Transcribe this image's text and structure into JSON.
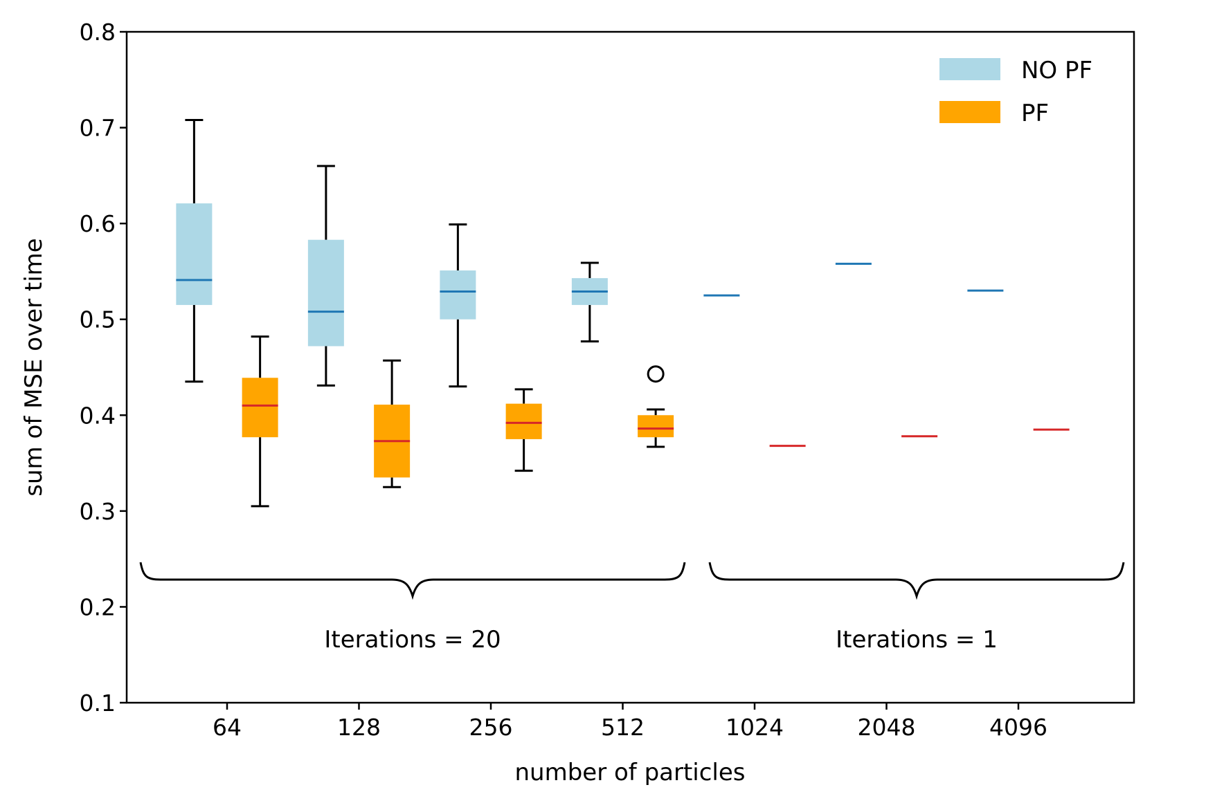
{
  "chart_data": {
    "type": "box",
    "xlabel": "number of particles",
    "ylabel": "sum of MSE over time",
    "ylim": [
      0.1,
      0.8
    ],
    "yticks": [
      "0.1",
      "0.2",
      "0.3",
      "0.4",
      "0.5",
      "0.6",
      "0.7",
      "0.8"
    ],
    "categories": [
      "64",
      "128",
      "256",
      "512",
      "1024",
      "2048",
      "4096"
    ],
    "legend": {
      "position": "top-right",
      "entries": [
        {
          "label": "NO PF",
          "color": "#add8e6"
        },
        {
          "label": "PF",
          "color": "#ffa500"
        }
      ]
    },
    "series": [
      {
        "name": "NO PF",
        "box_color": "#add8e6",
        "median_color": "#1f77b4",
        "boxes": [
          {
            "category": "64",
            "whisker_low": 0.435,
            "q1": 0.515,
            "median": 0.541,
            "q3": 0.621,
            "whisker_high": 0.708,
            "outliers": []
          },
          {
            "category": "128",
            "whisker_low": 0.431,
            "q1": 0.472,
            "median": 0.508,
            "q3": 0.583,
            "whisker_high": 0.66,
            "outliers": []
          },
          {
            "category": "256",
            "whisker_low": 0.43,
            "q1": 0.5,
            "median": 0.529,
            "q3": 0.551,
            "whisker_high": 0.599,
            "outliers": []
          },
          {
            "category": "512",
            "whisker_low": 0.477,
            "q1": 0.515,
            "median": 0.529,
            "q3": 0.543,
            "whisker_high": 0.559,
            "outliers": []
          },
          {
            "category": "1024",
            "whisker_low": 0.525,
            "q1": 0.525,
            "median": 0.525,
            "q3": 0.525,
            "whisker_high": 0.525,
            "outliers": []
          },
          {
            "category": "2048",
            "whisker_low": 0.558,
            "q1": 0.558,
            "median": 0.558,
            "q3": 0.558,
            "whisker_high": 0.558,
            "outliers": []
          },
          {
            "category": "4096",
            "whisker_low": 0.53,
            "q1": 0.53,
            "median": 0.53,
            "q3": 0.53,
            "whisker_high": 0.53,
            "outliers": []
          }
        ]
      },
      {
        "name": "PF",
        "box_color": "#ffa500",
        "median_color": "#d62728",
        "boxes": [
          {
            "category": "64",
            "whisker_low": 0.305,
            "q1": 0.377,
            "median": 0.41,
            "q3": 0.439,
            "whisker_high": 0.482,
            "outliers": []
          },
          {
            "category": "128",
            "whisker_low": 0.325,
            "q1": 0.335,
            "median": 0.373,
            "q3": 0.411,
            "whisker_high": 0.457,
            "outliers": []
          },
          {
            "category": "256",
            "whisker_low": 0.342,
            "q1": 0.375,
            "median": 0.392,
            "q3": 0.412,
            "whisker_high": 0.427,
            "outliers": []
          },
          {
            "category": "512",
            "whisker_low": 0.367,
            "q1": 0.377,
            "median": 0.386,
            "q3": 0.4,
            "whisker_high": 0.406,
            "outliers": [
              0.443
            ]
          },
          {
            "category": "1024",
            "whisker_low": 0.368,
            "q1": 0.368,
            "median": 0.368,
            "q3": 0.368,
            "whisker_high": 0.368,
            "outliers": []
          },
          {
            "category": "2048",
            "whisker_low": 0.378,
            "q1": 0.378,
            "median": 0.378,
            "q3": 0.378,
            "whisker_high": 0.378,
            "outliers": []
          },
          {
            "category": "4096",
            "whisker_low": 0.385,
            "q1": 0.385,
            "median": 0.385,
            "q3": 0.385,
            "whisker_high": 0.385,
            "outliers": []
          }
        ]
      }
    ],
    "annotations": [
      {
        "text": "Iterations = 20",
        "spans": [
          "64",
          "128",
          "256",
          "512"
        ]
      },
      {
        "text": "Iterations = 1",
        "spans": [
          "1024",
          "2048",
          "4096"
        ]
      }
    ]
  }
}
